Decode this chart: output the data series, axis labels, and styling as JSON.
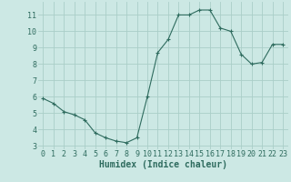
{
  "x": [
    0,
    1,
    2,
    3,
    4,
    5,
    6,
    7,
    8,
    9,
    10,
    11,
    12,
    13,
    14,
    15,
    16,
    17,
    18,
    19,
    20,
    21,
    22,
    23
  ],
  "y": [
    5.9,
    5.6,
    5.1,
    4.9,
    4.6,
    3.8,
    3.5,
    3.3,
    3.2,
    3.5,
    6.0,
    8.7,
    9.5,
    11.0,
    11.0,
    11.3,
    11.3,
    10.2,
    10.0,
    8.6,
    8.0,
    8.1,
    9.2,
    9.2
  ],
  "xlabel": "Humidex (Indice chaleur)",
  "bg_color": "#cce8e4",
  "grid_color": "#aacec8",
  "line_color": "#2e6b5e",
  "marker_color": "#2e6b5e",
  "ylim": [
    2.8,
    11.8
  ],
  "xlim": [
    -0.5,
    23.5
  ],
  "yticks": [
    3,
    4,
    5,
    6,
    7,
    8,
    9,
    10,
    11
  ],
  "xticks": [
    0,
    1,
    2,
    3,
    4,
    5,
    6,
    7,
    8,
    9,
    10,
    11,
    12,
    13,
    14,
    15,
    16,
    17,
    18,
    19,
    20,
    21,
    22,
    23
  ],
  "tick_label_color": "#2e6b5e",
  "xlabel_color": "#2e6b5e",
  "xlabel_fontsize": 7,
  "tick_fontsize": 6
}
